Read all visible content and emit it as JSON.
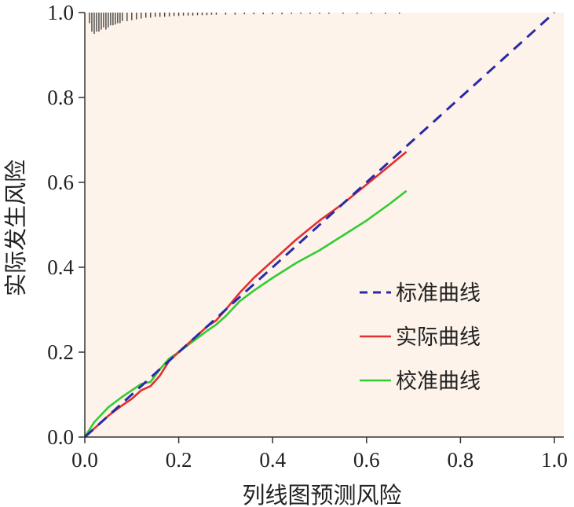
{
  "chart_data": {
    "type": "line",
    "xlabel": "列线图预测风险",
    "ylabel": "实际发生风险",
    "xlim": [
      0.0,
      1.0
    ],
    "ylim": [
      0.0,
      1.0
    ],
    "x_ticks": [
      "0.0",
      "0.2",
      "0.4",
      "0.6",
      "0.8",
      "1.0"
    ],
    "y_ticks": [
      "0.0",
      "0.2",
      "0.4",
      "0.6",
      "0.8",
      "1.0"
    ],
    "grid": false,
    "legend_position": "bottom-right",
    "colors": {
      "background": "#fdf3ea",
      "ideal": "#2a2aa6",
      "apparent": "#e03030",
      "corrected": "#33cc33",
      "rug": "#444444"
    },
    "series": [
      {
        "name": "标准曲线",
        "style": "dashed",
        "x": [
          0.0,
          1.0
        ],
        "y": [
          0.0,
          1.0
        ]
      },
      {
        "name": "实际曲线",
        "style": "solid",
        "x": [
          0.0,
          0.02,
          0.05,
          0.08,
          0.1,
          0.12,
          0.14,
          0.16,
          0.18,
          0.2,
          0.23,
          0.26,
          0.28,
          0.3,
          0.33,
          0.36,
          0.4,
          0.45,
          0.5,
          0.55,
          0.6,
          0.65,
          0.685
        ],
        "y": [
          0.0,
          0.02,
          0.05,
          0.075,
          0.09,
          0.11,
          0.12,
          0.145,
          0.18,
          0.2,
          0.23,
          0.26,
          0.275,
          0.3,
          0.34,
          0.375,
          0.415,
          0.465,
          0.51,
          0.55,
          0.595,
          0.64,
          0.672
        ]
      },
      {
        "name": "校准曲线",
        "style": "solid",
        "x": [
          0.0,
          0.02,
          0.05,
          0.08,
          0.1,
          0.12,
          0.14,
          0.16,
          0.18,
          0.2,
          0.23,
          0.26,
          0.28,
          0.3,
          0.33,
          0.36,
          0.4,
          0.45,
          0.5,
          0.55,
          0.6,
          0.65,
          0.685
        ],
        "y": [
          0.0,
          0.035,
          0.07,
          0.095,
          0.11,
          0.125,
          0.13,
          0.16,
          0.185,
          0.2,
          0.225,
          0.25,
          0.265,
          0.285,
          0.32,
          0.345,
          0.375,
          0.41,
          0.44,
          0.475,
          0.51,
          0.55,
          0.58
        ]
      }
    ],
    "rug": {
      "x": [
        0.01,
        0.015,
        0.02,
        0.025,
        0.03,
        0.035,
        0.04,
        0.045,
        0.05,
        0.055,
        0.06,
        0.065,
        0.07,
        0.075,
        0.08,
        0.09,
        0.1,
        0.11,
        0.12,
        0.13,
        0.14,
        0.15,
        0.16,
        0.17,
        0.18,
        0.19,
        0.2,
        0.21,
        0.22,
        0.23,
        0.24,
        0.25,
        0.26,
        0.27,
        0.28,
        0.3,
        0.32,
        0.34,
        0.36,
        0.38,
        0.4,
        0.42,
        0.44,
        0.46,
        0.48,
        0.5,
        0.52,
        0.55,
        0.58,
        0.61,
        0.64,
        0.67
      ],
      "depth": [
        0.025,
        0.045,
        0.05,
        0.045,
        0.045,
        0.04,
        0.035,
        0.04,
        0.035,
        0.03,
        0.03,
        0.028,
        0.025,
        0.025,
        0.02,
        0.02,
        0.018,
        0.016,
        0.014,
        0.012,
        0.012,
        0.01,
        0.01,
        0.01,
        0.009,
        0.008,
        0.008,
        0.007,
        0.007,
        0.007,
        0.006,
        0.006,
        0.006,
        0.005,
        0.005,
        0.005,
        0.005,
        0.004,
        0.004,
        0.004,
        0.004,
        0.004,
        0.003,
        0.003,
        0.003,
        0.003,
        0.003,
        0.003,
        0.003,
        0.003,
        0.003,
        0.003
      ]
    }
  }
}
